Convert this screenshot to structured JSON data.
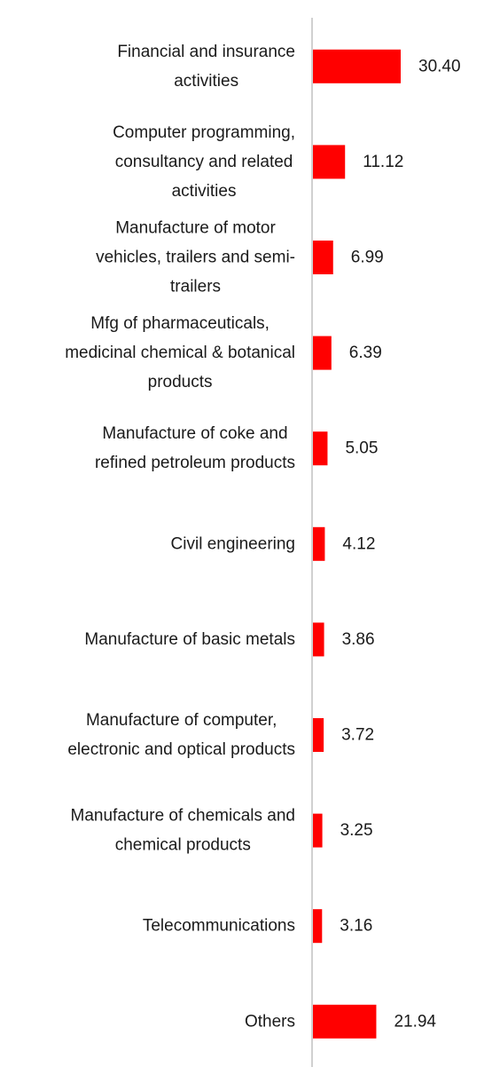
{
  "chart_data": {
    "type": "bar",
    "orientation": "horizontal",
    "title": "",
    "xlabel": "",
    "ylabel": "",
    "xlim": [
      0,
      30.4
    ],
    "grid": false,
    "legend": "none",
    "bar_color": "#ff0000",
    "axis_color": "#d0d0d0",
    "text_color": "#1a1a1a",
    "categories": [
      [
        "Financial and insurance",
        "activities"
      ],
      [
        "Computer programming,",
        "consultancy and related",
        "activities"
      ],
      [
        "Manufacture of motor",
        "vehicles, trailers and semi-",
        "trailers"
      ],
      [
        "Mfg of pharmaceuticals,",
        "medicinal chemical & botanical",
        "products"
      ],
      [
        "Manufacture of coke and",
        "refined petroleum products"
      ],
      [
        "Civil engineering"
      ],
      [
        "Manufacture of basic metals"
      ],
      [
        "Manufacture of computer,",
        "electronic and optical products"
      ],
      [
        "Manufacture of chemicals and",
        "chemical products"
      ],
      [
        "Telecommunications"
      ],
      [
        "Others"
      ]
    ],
    "values": [
      30.4,
      11.12,
      6.99,
      6.39,
      5.05,
      4.12,
      3.86,
      3.72,
      3.25,
      3.16,
      21.94
    ],
    "value_labels": [
      "30.40",
      "11.12",
      "6.99",
      "6.39",
      "5.05",
      "4.12",
      "3.86",
      "3.72",
      "3.25",
      "3.16",
      "21.94"
    ]
  }
}
